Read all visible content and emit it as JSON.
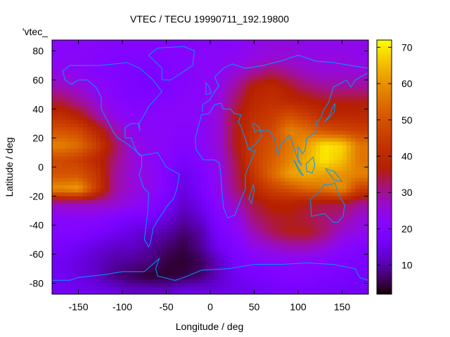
{
  "chart_data": {
    "type": "heatmap",
    "title": "VTEC / TECU 19990711_192.19800",
    "xlabel": "Longitude / deg",
    "ylabel": "Latitude / deg",
    "key_label": "'vtec_",
    "xlim": [
      -180,
      180
    ],
    "ylim": [
      -87.5,
      87.5
    ],
    "xticks": [
      -150,
      -100,
      -50,
      0,
      50,
      100,
      150
    ],
    "yticks": [
      -80,
      -60,
      -40,
      -20,
      0,
      20,
      40,
      60,
      80
    ],
    "colorbar": {
      "range": [
        2,
        72
      ],
      "ticks": [
        10,
        20,
        30,
        40,
        50,
        60,
        70
      ],
      "palette": "black-blue-violet-yellow"
    },
    "grid": false,
    "coastline_color": "#0099ff",
    "lon": [
      -170,
      -150,
      -130,
      -110,
      -90,
      -70,
      -50,
      -30,
      -10,
      10,
      30,
      50,
      70,
      90,
      110,
      130,
      150,
      170
    ],
    "lat": [
      85,
      75,
      65,
      55,
      45,
      35,
      25,
      15,
      5,
      -5,
      -15,
      -25,
      -35,
      -45,
      -55,
      -65,
      -75,
      -85
    ],
    "values": [
      [
        22,
        22,
        22,
        21,
        21,
        21,
        21,
        21,
        22,
        22,
        22,
        24,
        25,
        25,
        24,
        24,
        24,
        24
      ],
      [
        22,
        22,
        21,
        20,
        20,
        20,
        20,
        21,
        22,
        22,
        23,
        25,
        26,
        26,
        25,
        25,
        25,
        24
      ],
      [
        24,
        23,
        21,
        20,
        19,
        18,
        20,
        21,
        22,
        23,
        26,
        30,
        33,
        30,
        27,
        26,
        26,
        26
      ],
      [
        28,
        26,
        23,
        21,
        19,
        18,
        19,
        21,
        22,
        24,
        30,
        38,
        40,
        36,
        32,
        30,
        30,
        30
      ],
      [
        34,
        30,
        26,
        22,
        20,
        20,
        21,
        22,
        22,
        25,
        33,
        40,
        42,
        40,
        38,
        36,
        36,
        36
      ],
      [
        42,
        38,
        30,
        24,
        22,
        22,
        22,
        22,
        22,
        26,
        36,
        42,
        45,
        50,
        46,
        40,
        40,
        40
      ],
      [
        50,
        48,
        40,
        30,
        24,
        22,
        22,
        21,
        22,
        26,
        36,
        44,
        48,
        58,
        55,
        50,
        48,
        46
      ],
      [
        58,
        55,
        46,
        34,
        26,
        23,
        22,
        20,
        22,
        26,
        36,
        46,
        50,
        56,
        62,
        70,
        68,
        56
      ],
      [
        48,
        46,
        40,
        32,
        26,
        23,
        21,
        18,
        21,
        25,
        34,
        46,
        52,
        58,
        64,
        70,
        66,
        56
      ],
      [
        50,
        50,
        44,
        30,
        26,
        24,
        20,
        15,
        19,
        24,
        33,
        44,
        54,
        62,
        64,
        62,
        60,
        58
      ],
      [
        60,
        62,
        46,
        30,
        26,
        24,
        20,
        14,
        18,
        24,
        32,
        40,
        46,
        50,
        54,
        56,
        60,
        46
      ],
      [
        28,
        28,
        28,
        27,
        24,
        22,
        18,
        12,
        16,
        22,
        28,
        34,
        38,
        38,
        36,
        34,
        34,
        30
      ],
      [
        22,
        22,
        22,
        20,
        18,
        18,
        14,
        10,
        13,
        20,
        24,
        32,
        35,
        36,
        34,
        32,
        30,
        26
      ],
      [
        20,
        20,
        18,
        16,
        14,
        12,
        10,
        7,
        10,
        18,
        22,
        28,
        33,
        36,
        36,
        32,
        26,
        24
      ],
      [
        18,
        16,
        14,
        12,
        12,
        10,
        7,
        5,
        9,
        16,
        20,
        24,
        26,
        28,
        28,
        26,
        22,
        20
      ],
      [
        16,
        14,
        12,
        10,
        9,
        8,
        5,
        4,
        6,
        12,
        18,
        20,
        22,
        22,
        22,
        21,
        19,
        18
      ],
      [
        16,
        14,
        12,
        8,
        6,
        4,
        4,
        5,
        7,
        12,
        16,
        18,
        19,
        20,
        20,
        19,
        18,
        17
      ],
      [
        16,
        16,
        15,
        14,
        12,
        12,
        12,
        14,
        14,
        14,
        15,
        16,
        17,
        18,
        18,
        17,
        17,
        16
      ]
    ],
    "coastlines": [
      [
        [
          -168,
          66
        ],
        [
          -160,
          70
        ],
        [
          -140,
          70
        ],
        [
          -125,
          70
        ],
        [
          -95,
          72
        ],
        [
          -80,
          68
        ],
        [
          -65,
          60
        ],
        [
          -55,
          52
        ],
        [
          -65,
          45
        ],
        [
          -70,
          42
        ],
        [
          -76,
          35
        ],
        [
          -81,
          30
        ],
        [
          -80,
          25
        ],
        [
          -82,
          30
        ],
        [
          -90,
          30
        ],
        [
          -97,
          27
        ],
        [
          -97,
          20
        ],
        [
          -90,
          20
        ],
        [
          -87,
          15
        ],
        [
          -83,
          10
        ],
        [
          -78,
          8
        ],
        [
          -80,
          8
        ],
        [
          -86,
          12
        ],
        [
          -92,
          15
        ],
        [
          -105,
          20
        ],
        [
          -110,
          24
        ],
        [
          -117,
          32
        ],
        [
          -124,
          40
        ],
        [
          -124,
          48
        ],
        [
          -130,
          55
        ],
        [
          -140,
          60
        ],
        [
          -150,
          60
        ],
        [
          -158,
          57
        ],
        [
          -165,
          60
        ],
        [
          -168,
          66
        ]
      ],
      [
        [
          -55,
          60
        ],
        [
          -45,
          60
        ],
        [
          -20,
          70
        ],
        [
          -18,
          80
        ],
        [
          -30,
          83
        ],
        [
          -60,
          82
        ],
        [
          -70,
          77
        ],
        [
          -55,
          68
        ],
        [
          -55,
          60
        ]
      ],
      [
        [
          -78,
          8
        ],
        [
          -60,
          10
        ],
        [
          -50,
          0
        ],
        [
          -35,
          -5
        ],
        [
          -38,
          -15
        ],
        [
          -42,
          -22
        ],
        [
          -48,
          -26
        ],
        [
          -58,
          -35
        ],
        [
          -65,
          -42
        ],
        [
          -68,
          -52
        ],
        [
          -70,
          -55
        ],
        [
          -75,
          -50
        ],
        [
          -73,
          -40
        ],
        [
          -71,
          -30
        ],
        [
          -70,
          -18
        ],
        [
          -76,
          -14
        ],
        [
          -81,
          -5
        ],
        [
          -78,
          0
        ],
        [
          -78,
          8
        ]
      ],
      [
        [
          -10,
          36
        ],
        [
          -17,
          20
        ],
        [
          -16,
          12
        ],
        [
          -8,
          5
        ],
        [
          5,
          5
        ],
        [
          10,
          3
        ],
        [
          12,
          -5
        ],
        [
          13,
          -15
        ],
        [
          15,
          -28
        ],
        [
          20,
          -35
        ],
        [
          28,
          -33
        ],
        [
          35,
          -22
        ],
        [
          40,
          -15
        ],
        [
          40,
          -5
        ],
        [
          51,
          11
        ],
        [
          44,
          12
        ],
        [
          35,
          28
        ],
        [
          32,
          31
        ],
        [
          35,
          36
        ],
        [
          27,
          37
        ],
        [
          23,
          40
        ],
        [
          15,
          40
        ],
        [
          12,
          44
        ],
        [
          5,
          43
        ],
        [
          -1,
          37
        ],
        [
          -10,
          36
        ]
      ],
      [
        [
          -9,
          38
        ],
        [
          -9,
          43
        ],
        [
          -1,
          46
        ],
        [
          5,
          52
        ],
        [
          10,
          56
        ],
        [
          8,
          58
        ],
        [
          5,
          62
        ],
        [
          15,
          68
        ],
        [
          25,
          71
        ],
        [
          40,
          68
        ],
        [
          60,
          70
        ],
        [
          80,
          73
        ],
        [
          100,
          77
        ],
        [
          120,
          73
        ],
        [
          140,
          72
        ],
        [
          160,
          70
        ],
        [
          180,
          68
        ]
      ],
      [
        [
          180,
          65
        ],
        [
          165,
          60
        ],
        [
          160,
          55
        ],
        [
          155,
          60
        ],
        [
          140,
          55
        ],
        [
          135,
          45
        ],
        [
          128,
          38
        ],
        [
          126,
          34
        ],
        [
          121,
          31
        ],
        [
          122,
          25
        ],
        [
          110,
          20
        ],
        [
          108,
          12
        ],
        [
          105,
          9
        ],
        [
          100,
          14
        ],
        [
          100,
          4
        ],
        [
          104,
          1
        ],
        [
          98,
          8
        ],
        [
          94,
          16
        ],
        [
          90,
          22
        ],
        [
          80,
          15
        ],
        [
          77,
          8
        ],
        [
          73,
          20
        ],
        [
          67,
          25
        ],
        [
          57,
          25
        ],
        [
          56,
          27
        ],
        [
          50,
          30
        ],
        [
          48,
          30
        ],
        [
          51,
          24
        ],
        [
          56,
          26
        ],
        [
          59,
          22
        ],
        [
          52,
          16
        ],
        [
          44,
          12
        ]
      ],
      [
        [
          114,
          -22
        ],
        [
          122,
          -18
        ],
        [
          130,
          -12
        ],
        [
          137,
          -12
        ],
        [
          142,
          -11
        ],
        [
          146,
          -19
        ],
        [
          153,
          -26
        ],
        [
          151,
          -34
        ],
        [
          145,
          -38
        ],
        [
          140,
          -38
        ],
        [
          135,
          -35
        ],
        [
          130,
          -32
        ],
        [
          115,
          -34
        ],
        [
          114,
          -22
        ]
      ],
      [
        [
          -180,
          -78
        ],
        [
          -160,
          -78
        ],
        [
          -150,
          -76
        ],
        [
          -120,
          -74
        ],
        [
          -100,
          -72
        ],
        [
          -75,
          -72
        ],
        [
          -60,
          -64
        ],
        [
          -58,
          -63
        ],
        [
          -62,
          -70
        ],
        [
          -60,
          -75
        ],
        [
          -40,
          -78
        ],
        [
          -30,
          -76
        ],
        [
          -10,
          -71
        ],
        [
          20,
          -70
        ],
        [
          50,
          -67
        ],
        [
          80,
          -67
        ],
        [
          110,
          -66
        ],
        [
          140,
          -67
        ],
        [
          165,
          -70
        ],
        [
          170,
          -76
        ],
        [
          180,
          -78
        ]
      ],
      [
        [
          109,
          2
        ],
        [
          117,
          7
        ],
        [
          119,
          1
        ],
        [
          116,
          -4
        ],
        [
          110,
          -3
        ],
        [
          109,
          2
        ]
      ],
      [
        [
          95,
          5
        ],
        [
          106,
          -6
        ],
        [
          102,
          -4
        ],
        [
          95,
          5
        ]
      ],
      [
        [
          131,
          -1
        ],
        [
          141,
          -3
        ],
        [
          150,
          -10
        ],
        [
          141,
          -9
        ],
        [
          131,
          -1
        ]
      ],
      [
        [
          49,
          -12
        ],
        [
          50,
          -16
        ],
        [
          47,
          -25
        ],
        [
          44,
          -22
        ],
        [
          49,
          -12
        ]
      ],
      [
        [
          -5,
          50
        ],
        [
          1,
          51
        ],
        [
          -2,
          56
        ],
        [
          -5,
          58
        ],
        [
          -5,
          50
        ]
      ],
      [
        [
          130,
          31
        ],
        [
          135,
          34
        ],
        [
          141,
          38
        ],
        [
          142,
          44
        ],
        [
          140,
          42
        ],
        [
          135,
          35
        ],
        [
          130,
          31
        ]
      ]
    ]
  }
}
